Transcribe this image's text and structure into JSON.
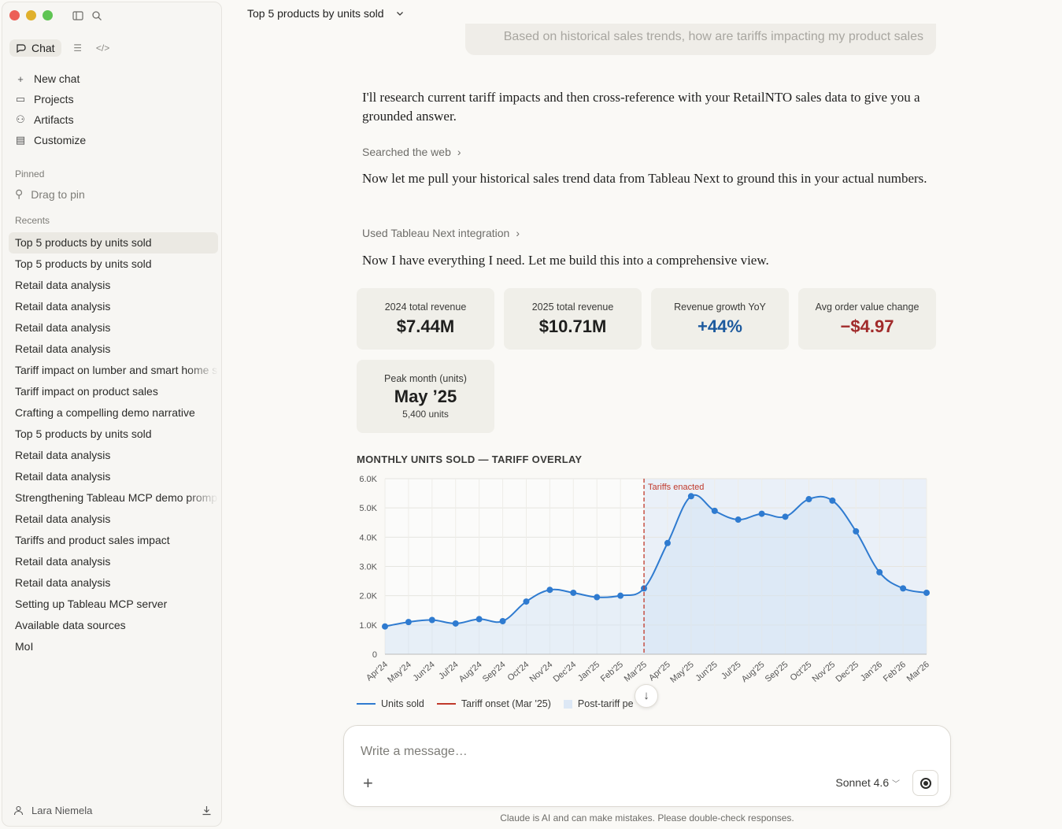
{
  "sidebar": {
    "mode": {
      "chat_label": "Chat"
    },
    "nav": [
      {
        "label": "New chat",
        "icon": "plus-icon"
      },
      {
        "label": "Projects",
        "icon": "folder-icon"
      },
      {
        "label": "Artifacts",
        "icon": "artifacts-icon"
      },
      {
        "label": "Customize",
        "icon": "briefcase-icon"
      }
    ],
    "pinned_label": "Pinned",
    "pin_hint": "Drag to pin",
    "recents_label": "Recents",
    "recents": [
      "Top 5 products by units sold",
      "Top 5 products by units sold",
      "Retail data analysis",
      "Retail data analysis",
      "Retail data analysis",
      "Retail data analysis",
      "Tariff impact on lumber and smart home s",
      "Tariff impact on product sales",
      "Crafting a compelling demo narrative",
      "Top 5 products by units sold",
      "Retail data analysis",
      "Retail data analysis",
      "Strengthening Tableau MCP demo promp",
      "Retail data analysis",
      "Tariffs and product sales impact",
      "Retail data analysis",
      "Retail data analysis",
      "Setting up Tableau MCP server",
      "Available data sources",
      "MoI"
    ],
    "user_name": "Lara Niemela"
  },
  "header": {
    "title": "Top 5 products by units sold"
  },
  "conversation": {
    "user_message": "Based on historical sales trends, how are tariffs impacting my product sales",
    "para1": "I'll research current tariff impacts and then cross-reference with your RetailNTO sales data to give you a grounded answer.",
    "tool1": "Searched the web",
    "para2": "Now let me pull your historical sales trend data from Tableau Next to ground this in your actual numbers.",
    "tool2": "Used Tableau Next integration",
    "para3": "Now I have everything I need. Let me build this into a comprehensive view."
  },
  "kpis": [
    {
      "label": "2024 total revenue",
      "value": "$7.44M"
    },
    {
      "label": "2025 total revenue",
      "value": "$10.71M"
    },
    {
      "label": "Revenue growth YoY",
      "value": "+44%"
    },
    {
      "label": "Avg order value change",
      "value": "−$4.97"
    },
    {
      "label": "Peak month (units)",
      "value": "May ’25",
      "sub": "5,400 units"
    }
  ],
  "colors": {
    "line": "#2f7bd0",
    "tariff": "#c0392b",
    "post_tariff_fill": "#dde8f5"
  },
  "chart_data": {
    "type": "line",
    "title": "MONTHLY UNITS SOLD — TARIFF OVERLAY",
    "categories": [
      "Apr'24",
      "May'24",
      "Jun'24",
      "Jul'24",
      "Aug'24",
      "Sep'24",
      "Oct'24",
      "Nov'24",
      "Dec'24",
      "Jan'25",
      "Feb'25",
      "Mar'25",
      "Apr'25",
      "May'25",
      "Jun'25",
      "Jul'25",
      "Aug'25",
      "Sep'25",
      "Oct'25",
      "Nov'25",
      "Dec'25",
      "Jan'26",
      "Feb'26",
      "Mar'26"
    ],
    "series": [
      {
        "name": "Units sold",
        "values": [
          950,
          1100,
          1170,
          1050,
          1200,
          1130,
          1800,
          2200,
          2100,
          1950,
          2000,
          2250,
          3800,
          5400,
          4900,
          4600,
          4800,
          4700,
          5300,
          5250,
          4200,
          2800,
          2250,
          2100
        ]
      }
    ],
    "ylim": [
      0,
      6000
    ],
    "yticks": [
      "0",
      "1.0K",
      "2.0K",
      "3.0K",
      "4.0K",
      "5.0K",
      "6.0K"
    ],
    "annotation": {
      "label": "Tariffs enacted",
      "at": "Mar'25"
    },
    "legend": [
      "Units sold",
      "Tariff onset (Mar '25)",
      "Post-tariff pe"
    ],
    "grid": true
  },
  "composer": {
    "placeholder": "Write a message…",
    "model": "Sonnet 4.6",
    "disclaimer": "Claude is AI and can make mistakes. Please double-check responses."
  }
}
